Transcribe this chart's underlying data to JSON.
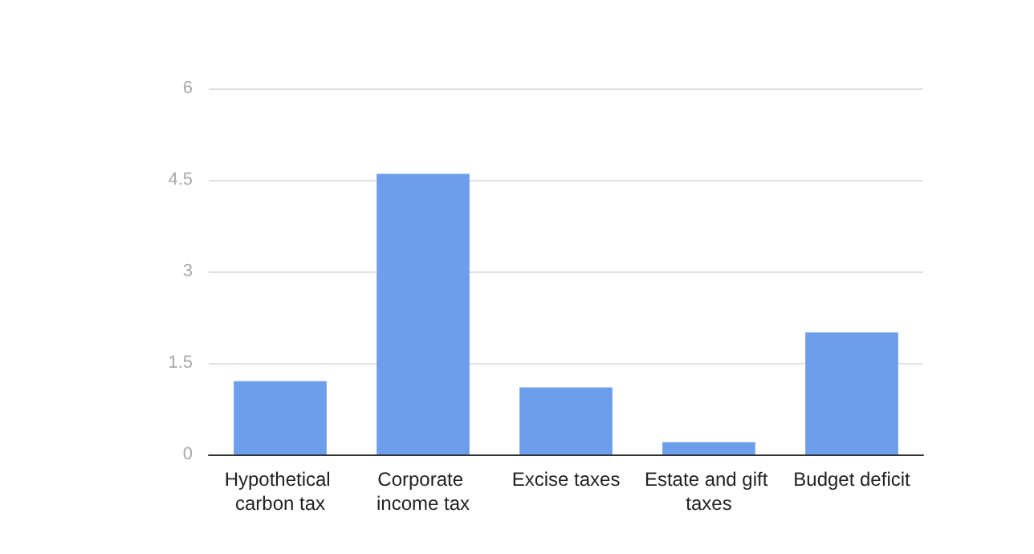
{
  "chart_data": {
    "type": "bar",
    "categories": [
      "Hypothetical carbon tax",
      "Corporate income tax",
      "Excise taxes",
      "Estate and gift taxes",
      "Budget deficit"
    ],
    "values": [
      1.2,
      4.6,
      1.1,
      0.2,
      2.0
    ],
    "color": "#6d9eeb",
    "ylim": [
      0,
      6
    ],
    "yticks": [
      0,
      1.5,
      3,
      4.5,
      6
    ],
    "grid": "y"
  }
}
